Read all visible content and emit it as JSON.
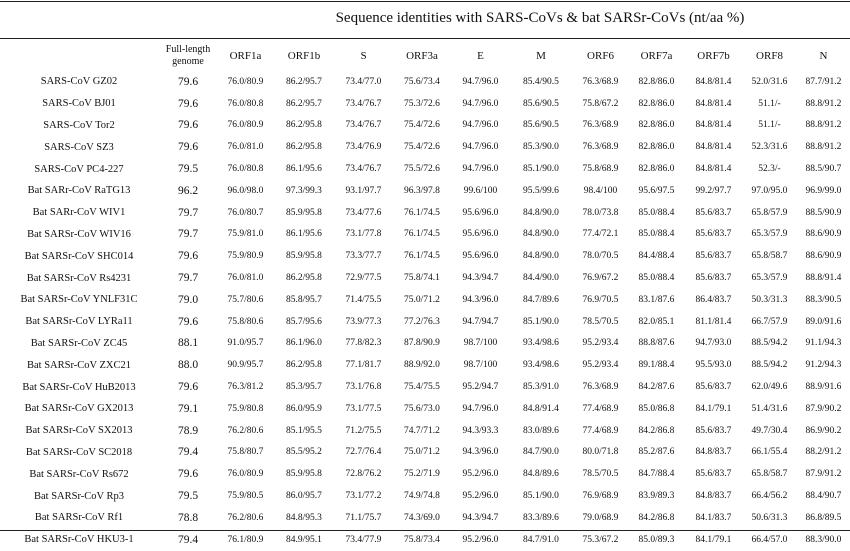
{
  "caption": "Sequence identities with SARS-CoVs & bat SARSr-CoVs (nt/aa %)",
  "columns": [
    "",
    "Full-length genome",
    "ORF1a",
    "ORF1b",
    "S",
    "ORF3a",
    "E",
    "M",
    "ORF6",
    "ORF7a",
    "ORF7b",
    "ORF8",
    "N"
  ],
  "rows": [
    [
      "SARS-CoV GZ02",
      "79.6",
      "76.0/80.9",
      "86.2/95.7",
      "73.4/77.0",
      "75.6/73.4",
      "94.7/96.0",
      "85.4/90.5",
      "76.3/68.9",
      "82.8/86.0",
      "84.8/81.4",
      "52.0/31.6",
      "87.7/91.2"
    ],
    [
      "SARS-CoV BJ01",
      "79.6",
      "76.0/80.8",
      "86.2/95.7",
      "73.4/76.7",
      "75.3/72.6",
      "94.7/96.0",
      "85.6/90.5",
      "75.8/67.2",
      "82.8/86.0",
      "84.8/81.4",
      "51.1/-",
      "88.8/91.2"
    ],
    [
      "SARS-CoV Tor2",
      "79.6",
      "76.0/80.9",
      "86.2/95.8",
      "73.4/76.7",
      "75.4/72.6",
      "94.7/96.0",
      "85.6/90.5",
      "76.3/68.9",
      "82.8/86.0",
      "84.8/81.4",
      "51.1/-",
      "88.8/91.2"
    ],
    [
      "SARS-CoV SZ3",
      "79.6",
      "76.0/81.0",
      "86.2/95.8",
      "73.4/76.9",
      "75.4/72.6",
      "94.7/96.0",
      "85.3/90.0",
      "76.3/68.9",
      "82.8/86.0",
      "84.8/81.4",
      "52.3/31.6",
      "88.8/91.2"
    ],
    [
      "SARS-CoV PC4-227",
      "79.5",
      "76.0/80.8",
      "86.1/95.6",
      "73.4/76.7",
      "75.5/72.6",
      "94.7/96.0",
      "85.1/90.0",
      "75.8/68.9",
      "82.8/86.0",
      "84.8/81.4",
      "52.3/-",
      "88.5/90.7"
    ],
    [
      "Bat SARr-CoV RaTG13",
      "96.2",
      "96.0/98.0",
      "97.3/99.3",
      "93.1/97.7",
      "96.3/97.8",
      "99.6/100",
      "95.5/99.6",
      "98.4/100",
      "95.6/97.5",
      "99.2/97.7",
      "97.0/95.0",
      "96.9/99.0"
    ],
    [
      "Bat SARr-CoV WIV1",
      "79.7",
      "76.0/80.7",
      "85.9/95.8",
      "73.4/77.6",
      "76.1/74.5",
      "95.6/96.0",
      "84.8/90.0",
      "78.0/73.8",
      "85.0/88.4",
      "85.6/83.7",
      "65.8/57.9",
      "88.5/90.9"
    ],
    [
      "Bat SARSr-CoV WIV16",
      "79.7",
      "75.9/81.0",
      "86.1/95.6",
      "73.1/77.8",
      "76.1/74.5",
      "95.6/96.0",
      "84.8/90.0",
      "77.4/72.1",
      "85.0/88.4",
      "85.6/83.7",
      "65.3/57.9",
      "88.6/90.9"
    ],
    [
      "Bat SARSr-CoV SHC014",
      "79.6",
      "75.9/80.9",
      "85.9/95.8",
      "73.3/77.7",
      "76.1/74.5",
      "95.6/96.0",
      "84.8/90.0",
      "78.0/70.5",
      "84.4/88.4",
      "85.6/83.7",
      "65.8/58.7",
      "88.6/90.9"
    ],
    [
      "Bat SARSr-CoV Rs4231",
      "79.7",
      "76.0/81.0",
      "86.2/95.8",
      "72.9/77.5",
      "75.8/74.1",
      "94.3/94.7",
      "84.4/90.0",
      "76.9/67.2",
      "85.0/88.4",
      "85.6/83.7",
      "65.3/57.9",
      "88.8/91.4"
    ],
    [
      "Bat SARSr-CoV YNLF31C",
      "79.0",
      "75.7/80.6",
      "85.8/95.7",
      "71.4/75.5",
      "75.0/71.2",
      "94.3/96.0",
      "84.7/89.6",
      "76.9/70.5",
      "83.1/87.6",
      "86.4/83.7",
      "50.3/31.3",
      "88.3/90.5"
    ],
    [
      "Bat SARSr-CoV LYRa11",
      "79.6",
      "75.8/80.6",
      "85.7/95.6",
      "73.9/77.3",
      "77.2/76.3",
      "94.7/94.7",
      "85.1/90.0",
      "78.5/70.5",
      "82.0/85.1",
      "81.1/81.4",
      "66.7/57.9",
      "89.0/91.6"
    ],
    [
      "Bat SARSr-CoV ZC45",
      "88.1",
      "91.0/95.7",
      "86.1/96.0",
      "77.8/82.3",
      "87.8/90.9",
      "98.7/100",
      "93.4/98.6",
      "95.2/93.4",
      "88.8/87.6",
      "94.7/93.0",
      "88.5/94.2",
      "91.1/94.3"
    ],
    [
      "Bat SARSr-CoV ZXC21",
      "88.0",
      "90.9/95.7",
      "86.2/95.8",
      "77.1/81.7",
      "88.9/92.0",
      "98.7/100",
      "93.4/98.6",
      "95.2/93.4",
      "89.1/88.4",
      "95.5/93.0",
      "88.5/94.2",
      "91.2/94.3"
    ],
    [
      "Bat SARSr-CoV HuB2013",
      "79.6",
      "76.3/81.2",
      "85.3/95.7",
      "73.1/76.8",
      "75.4/75.5",
      "95.2/94.7",
      "85.3/91.0",
      "76.3/68.9",
      "84.2/87.6",
      "85.6/83.7",
      "62.0/49.6",
      "88.9/91.6"
    ],
    [
      "Bat SARSr-CoV GX2013",
      "79.1",
      "75.9/80.8",
      "86.0/95.9",
      "73.1/77.5",
      "75.6/73.0",
      "94.7/96.0",
      "84.8/91.4",
      "77.4/68.9",
      "85.0/86.8",
      "84.1/79.1",
      "51.4/31.6",
      "87.9/90.2"
    ],
    [
      "Bat SARSr-CoV SX2013",
      "78.9",
      "76.2/80.6",
      "85.1/95.5",
      "71.2/75.5",
      "74.7/71.2",
      "94.3/93.3",
      "83.0/89.6",
      "77.4/68.9",
      "84.2/86.8",
      "85.6/83.7",
      "49.7/30.4",
      "86.9/90.2"
    ],
    [
      "Bat SARSr-CoV SC2018",
      "79.4",
      "75.8/80.7",
      "85.5/95.2",
      "72.7/76.4",
      "75.0/71.2",
      "94.3/96.0",
      "84.7/90.0",
      "80.0/71.8",
      "85.2/87.6",
      "84.8/83.7",
      "66.1/55.4",
      "88.2/91.2"
    ],
    [
      "Bat SARSr-CoV Rs672",
      "79.6",
      "76.0/80.9",
      "85.9/95.8",
      "72.8/76.2",
      "75.2/71.9",
      "95.2/96.0",
      "84.8/89.6",
      "78.5/70.5",
      "84.7/88.4",
      "85.6/83.7",
      "65.8/58.7",
      "87.9/91.2"
    ],
    [
      "Bat SARSr-CoV Rp3",
      "79.5",
      "75.9/80.5",
      "86.0/95.7",
      "73.1/77.2",
      "74.9/74.8",
      "95.2/96.0",
      "85.1/90.0",
      "76.9/68.9",
      "83.9/89.3",
      "84.8/83.7",
      "66.4/56.2",
      "88.4/90.7"
    ],
    [
      "Bat SARSr-CoV Rf1",
      "78.8",
      "76.2/80.6",
      "84.8/95.3",
      "71.1/75.7",
      "74.3/69.0",
      "94.3/94.7",
      "83.3/89.6",
      "79.0/68.9",
      "84.2/86.8",
      "84.1/83.7",
      "50.6/31.3",
      "86.8/89.5"
    ],
    [
      "Bat SARSr-CoV HKU3-1",
      "79.4",
      "76.1/80.9",
      "84.9/95.1",
      "73.4/77.9",
      "75.8/73.4",
      "95.2/96.0",
      "84.7/91.0",
      "75.3/67.2",
      "85.0/89.3",
      "84.1/79.1",
      "66.4/57.0",
      "88.3/90.0"
    ]
  ]
}
